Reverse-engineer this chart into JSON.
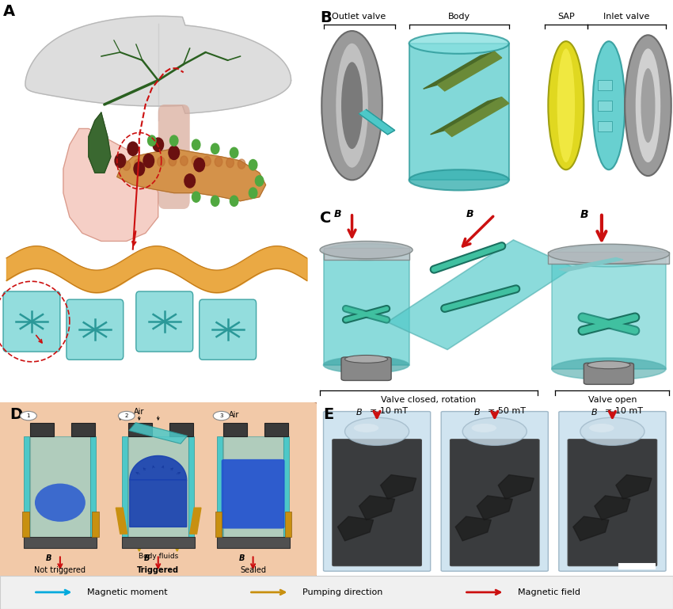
{
  "bg_color": "#ffffff",
  "panel_D_bg": "#f2c9a8",
  "teal": "#4dc8c8",
  "teal_light": "#80d8d8",
  "teal_dark": "#2a9898",
  "gray_light": "#b0b0b0",
  "gray": "#888888",
  "gray_dark": "#555555",
  "yellow": "#e0d840",
  "dark_yellow": "#c8a010",
  "blue": "#1850c0",
  "blue_light": "#4080e0",
  "dark_blue": "#0a2880",
  "olive": "#5a7030",
  "olive_light": "#7a9040",
  "red": "#cc1010",
  "dark_red": "#8b1010",
  "green_dark": "#2a6020",
  "green_mid": "#4a8030",
  "green_light": "#50a840",
  "orange": "#d48030",
  "orange_dark": "#b06020",
  "pink": "#f0a898",
  "B_labels": [
    "Outlet valve",
    "Body",
    "SAP",
    "Inlet valve"
  ],
  "C_labels": [
    "Valve closed, rotation",
    "Valve open"
  ],
  "D_labels": [
    "Not triggered",
    "Triggered",
    "Sealed"
  ],
  "E_labels": [
    "B = 10 mT",
    "B = 50 mT",
    "B = 10 mT"
  ]
}
